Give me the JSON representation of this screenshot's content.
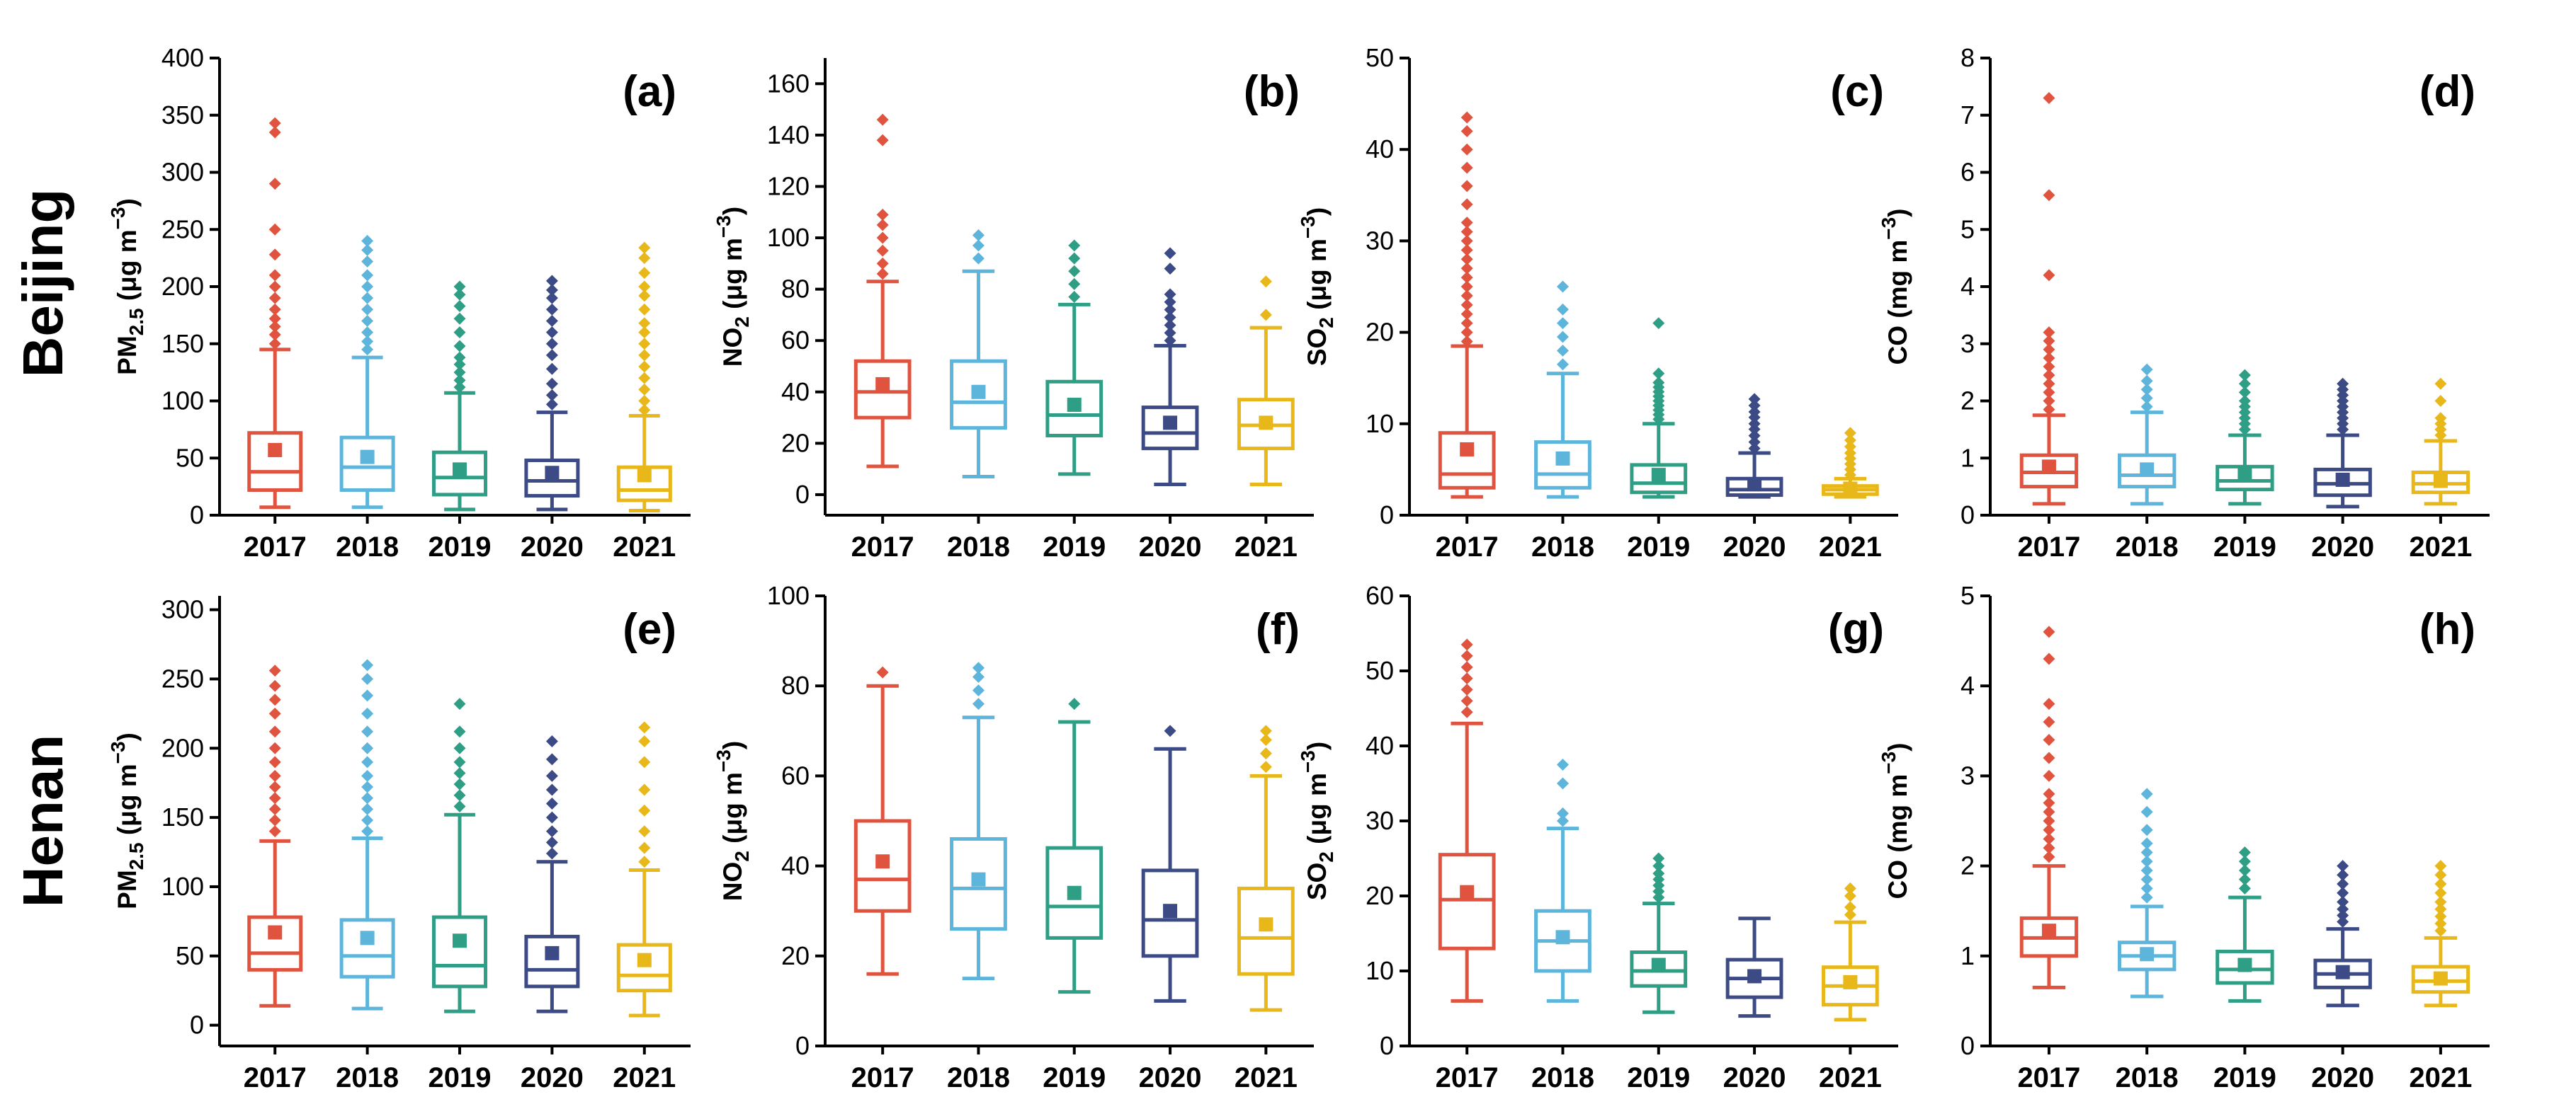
{
  "row_labels": [
    "Beijing",
    "Henan"
  ],
  "colors": [
    "#E0533F",
    "#5EB5DC",
    "#2E9E85",
    "#3C4A85",
    "#E8B71A"
  ],
  "chart_data": [
    {
      "type": "boxplot",
      "panel": "(a)",
      "row": "Beijing",
      "pollutant": "PM2.5",
      "ylabel": {
        "base": "PM",
        "sub": "2.5",
        "unit": " (μg m",
        "sup": "−3",
        "close": ")"
      },
      "categories": [
        "2017",
        "2018",
        "2019",
        "2020",
        "2021"
      ],
      "ylim": [
        0,
        400
      ],
      "yticks": [
        0,
        50,
        100,
        150,
        200,
        250,
        300,
        350,
        400
      ],
      "boxes": [
        {
          "whisker_low": 7,
          "q1": 22,
          "median": 38,
          "q3": 72,
          "whisker_high": 145,
          "mean": 57,
          "outliers": [
            150,
            158,
            165,
            172,
            180,
            190,
            200,
            210,
            228,
            250,
            290,
            335,
            343
          ]
        },
        {
          "whisker_low": 7,
          "q1": 22,
          "median": 42,
          "q3": 68,
          "whisker_high": 138,
          "mean": 51,
          "outliers": [
            145,
            152,
            160,
            170,
            180,
            190,
            200,
            210,
            222,
            232,
            240
          ]
        },
        {
          "whisker_low": 5,
          "q1": 18,
          "median": 33,
          "q3": 55,
          "whisker_high": 107,
          "mean": 40,
          "outliers": [
            112,
            118,
            125,
            132,
            138,
            148,
            160,
            172,
            183,
            193,
            200
          ]
        },
        {
          "whisker_low": 5,
          "q1": 17,
          "median": 30,
          "q3": 48,
          "whisker_high": 90,
          "mean": 37,
          "outliers": [
            97,
            105,
            115,
            128,
            140,
            150,
            160,
            170,
            180,
            190,
            197,
            205
          ]
        },
        {
          "whisker_low": 4,
          "q1": 13,
          "median": 22,
          "q3": 42,
          "whisker_high": 87,
          "mean": 35,
          "outliers": [
            92,
            100,
            110,
            120,
            130,
            140,
            150,
            160,
            168,
            180,
            192,
            200,
            212,
            225,
            234
          ]
        }
      ]
    },
    {
      "type": "boxplot",
      "panel": "(b)",
      "row": "Beijing",
      "pollutant": "NO2",
      "ylabel": {
        "base": "NO",
        "sub": "2",
        "unit": " (μg m",
        "sup": "−3",
        "close": ")"
      },
      "categories": [
        "2017",
        "2018",
        "2019",
        "2020",
        "2021"
      ],
      "ylim": [
        -8,
        170
      ],
      "yticks": [
        0,
        20,
        40,
        60,
        80,
        100,
        120,
        140,
        160
      ],
      "boxes": [
        {
          "whisker_low": 11,
          "q1": 30,
          "median": 40,
          "q3": 52,
          "whisker_high": 83,
          "mean": 43,
          "outliers": [
            86,
            90,
            95,
            100,
            105,
            109,
            138,
            146
          ]
        },
        {
          "whisker_low": 7,
          "q1": 26,
          "median": 36,
          "q3": 52,
          "whisker_high": 87,
          "mean": 40,
          "outliers": [
            92,
            97,
            101
          ]
        },
        {
          "whisker_low": 8,
          "q1": 23,
          "median": 31,
          "q3": 44,
          "whisker_high": 74,
          "mean": 35,
          "outliers": [
            77,
            82,
            87,
            92,
            97
          ]
        },
        {
          "whisker_low": 4,
          "q1": 18,
          "median": 24,
          "q3": 34,
          "whisker_high": 58,
          "mean": 28,
          "outliers": [
            60,
            63,
            66,
            69,
            72,
            75,
            78,
            88,
            94
          ]
        },
        {
          "whisker_low": 4,
          "q1": 18,
          "median": 27,
          "q3": 37,
          "whisker_high": 65,
          "mean": 28,
          "outliers": [
            70,
            83
          ]
        }
      ]
    },
    {
      "type": "boxplot",
      "panel": "(c)",
      "row": "Beijing",
      "pollutant": "SO2",
      "ylabel": {
        "base": "SO",
        "sub": "2",
        "unit": " (μg m",
        "sup": "−3",
        "close": ")"
      },
      "categories": [
        "2017",
        "2018",
        "2019",
        "2020",
        "2021"
      ],
      "ylim": [
        0,
        50
      ],
      "yticks": [
        0,
        10,
        20,
        30,
        40,
        50
      ],
      "boxes": [
        {
          "whisker_low": 2,
          "q1": 3,
          "median": 4.5,
          "q3": 9,
          "whisker_high": 18.5,
          "mean": 7.2,
          "outliers": [
            19,
            20,
            21,
            22,
            23,
            24,
            25,
            26,
            27,
            28,
            29,
            30,
            31,
            32,
            34,
            36,
            38,
            40,
            42,
            43.5
          ]
        },
        {
          "whisker_low": 2,
          "q1": 3,
          "median": 4.5,
          "q3": 8,
          "whisker_high": 15.5,
          "mean": 6.2,
          "outliers": [
            16.5,
            18,
            19.5,
            21,
            22.5,
            25
          ]
        },
        {
          "whisker_low": 2,
          "q1": 2.5,
          "median": 3.5,
          "q3": 5.5,
          "whisker_high": 10,
          "mean": 4.4,
          "outliers": [
            10.5,
            11,
            11.5,
            12,
            12.5,
            13,
            13.5,
            14,
            14.5,
            15.5,
            21
          ]
        },
        {
          "whisker_low": 2,
          "q1": 2.2,
          "median": 2.8,
          "q3": 4,
          "whisker_high": 6.8,
          "mean": 3.4,
          "outliers": [
            7.3,
            8,
            8.7,
            9.4,
            10,
            10.7,
            11.3,
            12,
            12.7
          ]
        },
        {
          "whisker_low": 2,
          "q1": 2.3,
          "median": 2.8,
          "q3": 3.2,
          "whisker_high": 4,
          "mean": 2.9,
          "outliers": [
            4.4,
            5,
            5.6,
            6.2,
            6.8,
            7.5,
            8.2,
            9
          ]
        }
      ]
    },
    {
      "type": "boxplot",
      "panel": "(d)",
      "row": "Beijing",
      "pollutant": "CO",
      "ylabel": {
        "base": "CO",
        "sub": "",
        "unit": " (mg m",
        "sup": "−3",
        "close": ")"
      },
      "categories": [
        "2017",
        "2018",
        "2019",
        "2020",
        "2021"
      ],
      "ylim": [
        0,
        8
      ],
      "yticks": [
        0,
        1,
        2,
        3,
        4,
        5,
        6,
        7,
        8
      ],
      "boxes": [
        {
          "whisker_low": 0.2,
          "q1": 0.5,
          "median": 0.75,
          "q3": 1.05,
          "whisker_high": 1.75,
          "mean": 0.85,
          "outliers": [
            1.85,
            2,
            2.15,
            2.3,
            2.45,
            2.6,
            2.75,
            2.9,
            3.05,
            3.2,
            4.2,
            5.6,
            7.3
          ]
        },
        {
          "whisker_low": 0.2,
          "q1": 0.5,
          "median": 0.7,
          "q3": 1.05,
          "whisker_high": 1.8,
          "mean": 0.8,
          "outliers": [
            1.9,
            2.05,
            2.2,
            2.35,
            2.55
          ]
        },
        {
          "whisker_low": 0.2,
          "q1": 0.45,
          "median": 0.6,
          "q3": 0.85,
          "whisker_high": 1.4,
          "mean": 0.7,
          "outliers": [
            1.5,
            1.6,
            1.7,
            1.8,
            1.9,
            2,
            2.15,
            2.3,
            2.45
          ]
        },
        {
          "whisker_low": 0.15,
          "q1": 0.35,
          "median": 0.55,
          "q3": 0.8,
          "whisker_high": 1.4,
          "mean": 0.62,
          "outliers": [
            1.5,
            1.6,
            1.7,
            1.8,
            1.9,
            2,
            2.1,
            2.2,
            2.3
          ]
        },
        {
          "whisker_low": 0.2,
          "q1": 0.4,
          "median": 0.55,
          "q3": 0.75,
          "whisker_high": 1.3,
          "mean": 0.6,
          "outliers": [
            1.4,
            1.5,
            1.6,
            1.7,
            2,
            2.3
          ]
        }
      ]
    },
    {
      "type": "boxplot",
      "panel": "(e)",
      "row": "Henan",
      "pollutant": "PM2.5",
      "ylabel": {
        "base": "PM",
        "sub": "2.5",
        "unit": " (μg m",
        "sup": "−3",
        "close": ")"
      },
      "categories": [
        "2017",
        "2018",
        "2019",
        "2020",
        "2021"
      ],
      "ylim": [
        -15,
        310
      ],
      "yticks": [
        0,
        50,
        100,
        150,
        200,
        250,
        300
      ],
      "boxes": [
        {
          "whisker_low": 14,
          "q1": 40,
          "median": 52,
          "q3": 78,
          "whisker_high": 133,
          "mean": 67,
          "outliers": [
            140,
            148,
            156,
            164,
            172,
            180,
            190,
            200,
            212,
            225,
            235,
            245,
            256
          ]
        },
        {
          "whisker_low": 12,
          "q1": 35,
          "median": 50,
          "q3": 76,
          "whisker_high": 135,
          "mean": 63,
          "outliers": [
            140,
            148,
            156,
            164,
            172,
            180,
            190,
            200,
            212,
            225,
            238,
            250,
            260
          ]
        },
        {
          "whisker_low": 10,
          "q1": 28,
          "median": 43,
          "q3": 78,
          "whisker_high": 152,
          "mean": 61,
          "outliers": [
            158,
            166,
            174,
            182,
            190,
            200,
            212,
            232
          ]
        },
        {
          "whisker_low": 10,
          "q1": 28,
          "median": 40,
          "q3": 64,
          "whisker_high": 118,
          "mean": 52,
          "outliers": [
            124,
            132,
            140,
            150,
            160,
            170,
            180,
            192,
            205
          ]
        },
        {
          "whisker_low": 7,
          "q1": 25,
          "median": 36,
          "q3": 58,
          "whisker_high": 112,
          "mean": 47,
          "outliers": [
            118,
            128,
            140,
            155,
            170,
            190,
            205,
            215
          ]
        }
      ]
    },
    {
      "type": "boxplot",
      "panel": "(f)",
      "row": "Henan",
      "pollutant": "NO2",
      "ylabel": {
        "base": "NO",
        "sub": "2",
        "unit": " (μg m",
        "sup": "−3",
        "close": ")"
      },
      "categories": [
        "2017",
        "2018",
        "2019",
        "2020",
        "2021"
      ],
      "ylim": [
        0,
        100
      ],
      "yticks": [
        0,
        20,
        40,
        60,
        80,
        100
      ],
      "boxes": [
        {
          "whisker_low": 16,
          "q1": 30,
          "median": 37,
          "q3": 50,
          "whisker_high": 80,
          "mean": 41,
          "outliers": [
            83
          ]
        },
        {
          "whisker_low": 15,
          "q1": 26,
          "median": 35,
          "q3": 46,
          "whisker_high": 73,
          "mean": 37,
          "outliers": [
            76,
            79,
            82,
            84
          ]
        },
        {
          "whisker_low": 12,
          "q1": 24,
          "median": 31,
          "q3": 44,
          "whisker_high": 72,
          "mean": 34,
          "outliers": [
            76
          ]
        },
        {
          "whisker_low": 10,
          "q1": 20,
          "median": 28,
          "q3": 39,
          "whisker_high": 66,
          "mean": 30,
          "outliers": [
            70
          ]
        },
        {
          "whisker_low": 8,
          "q1": 16,
          "median": 24,
          "q3": 35,
          "whisker_high": 60,
          "mean": 27,
          "outliers": [
            62,
            65,
            68,
            70
          ]
        }
      ]
    },
    {
      "type": "boxplot",
      "panel": "(g)",
      "row": "Henan",
      "pollutant": "SO2",
      "ylabel": {
        "base": "SO",
        "sub": "2",
        "unit": " (μg m",
        "sup": "−3",
        "close": ")"
      },
      "categories": [
        "2017",
        "2018",
        "2019",
        "2020",
        "2021"
      ],
      "ylim": [
        0,
        60
      ],
      "yticks": [
        0,
        10,
        20,
        30,
        40,
        50,
        60
      ],
      "boxes": [
        {
          "whisker_low": 6,
          "q1": 13,
          "median": 19.5,
          "q3": 25.5,
          "whisker_high": 43,
          "mean": 20.5,
          "outliers": [
            44.5,
            46,
            47.5,
            49,
            50.5,
            52,
            53.5
          ]
        },
        {
          "whisker_low": 6,
          "q1": 10,
          "median": 14,
          "q3": 18,
          "whisker_high": 29,
          "mean": 14.5,
          "outliers": [
            30,
            31,
            35,
            37.5
          ]
        },
        {
          "whisker_low": 4.5,
          "q1": 8,
          "median": 10,
          "q3": 12.5,
          "whisker_high": 19,
          "mean": 10.8,
          "outliers": [
            19.8,
            20.6,
            21.4,
            22.2,
            23,
            24,
            25
          ]
        },
        {
          "whisker_low": 4,
          "q1": 6.5,
          "median": 9,
          "q3": 11.5,
          "whisker_high": 17,
          "mean": 9.3,
          "outliers": []
        },
        {
          "whisker_low": 3.5,
          "q1": 5.5,
          "median": 8,
          "q3": 10.5,
          "whisker_high": 16.5,
          "mean": 8.5,
          "outliers": [
            17.5,
            18.5,
            20,
            21
          ]
        }
      ]
    },
    {
      "type": "boxplot",
      "panel": "(h)",
      "row": "Henan",
      "pollutant": "CO",
      "ylabel": {
        "base": "CO",
        "sub": "",
        "unit": " (mg m",
        "sup": "−3",
        "close": ")"
      },
      "categories": [
        "2017",
        "2018",
        "2019",
        "2020",
        "2021"
      ],
      "ylim": [
        0,
        5
      ],
      "yticks": [
        0,
        1,
        2,
        3,
        4,
        5
      ],
      "boxes": [
        {
          "whisker_low": 0.65,
          "q1": 1.0,
          "median": 1.2,
          "q3": 1.42,
          "whisker_high": 2.0,
          "mean": 1.28,
          "outliers": [
            2.1,
            2.2,
            2.3,
            2.4,
            2.5,
            2.6,
            2.7,
            2.8,
            3.0,
            3.2,
            3.4,
            3.6,
            3.8,
            4.3,
            4.6
          ]
        },
        {
          "whisker_low": 0.55,
          "q1": 0.85,
          "median": 1.0,
          "q3": 1.15,
          "whisker_high": 1.55,
          "mean": 1.02,
          "outliers": [
            1.65,
            1.75,
            1.85,
            1.95,
            2.05,
            2.15,
            2.25,
            2.4,
            2.6,
            2.8
          ]
        },
        {
          "whisker_low": 0.5,
          "q1": 0.7,
          "median": 0.85,
          "q3": 1.05,
          "whisker_high": 1.65,
          "mean": 0.9,
          "outliers": [
            1.75,
            1.85,
            1.95,
            2.05,
            2.15
          ]
        },
        {
          "whisker_low": 0.45,
          "q1": 0.65,
          "median": 0.8,
          "q3": 0.95,
          "whisker_high": 1.3,
          "mean": 0.82,
          "outliers": [
            1.38,
            1.45,
            1.52,
            1.6,
            1.7,
            1.8,
            1.9,
            2.0
          ]
        },
        {
          "whisker_low": 0.45,
          "q1": 0.6,
          "median": 0.72,
          "q3": 0.88,
          "whisker_high": 1.2,
          "mean": 0.75,
          "outliers": [
            1.28,
            1.36,
            1.44,
            1.52,
            1.6,
            1.7,
            1.8,
            1.9,
            2.0
          ]
        }
      ]
    }
  ]
}
